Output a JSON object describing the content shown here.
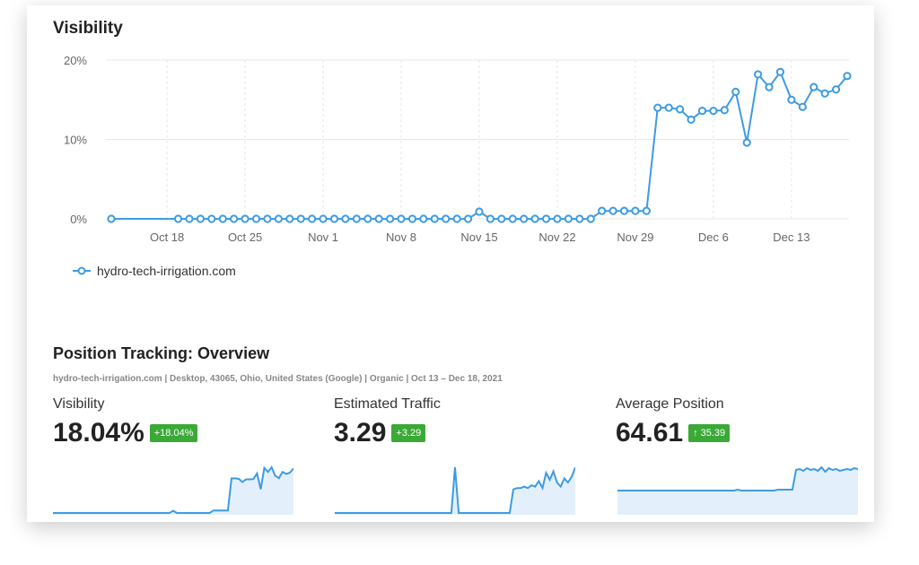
{
  "chart_data": [
    {
      "type": "line",
      "title": "Visibility",
      "ylim": [
        0,
        20
      ],
      "yticks": [
        "0%",
        "10%",
        "20%"
      ],
      "ytick_values": [
        0,
        10,
        20
      ],
      "xlim": [
        "2021-10-13",
        "2021-12-18"
      ],
      "xticks": [
        "Oct 18",
        "Oct 25",
        "Nov 1",
        "Nov 8",
        "Nov 15",
        "Nov 22",
        "Nov 29",
        "Dec 6",
        "Dec 13"
      ],
      "xtick_dates": [
        "2021-10-18",
        "2021-10-25",
        "2021-11-01",
        "2021-11-08",
        "2021-11-15",
        "2021-11-22",
        "2021-11-29",
        "2021-12-06",
        "2021-12-13"
      ],
      "grid": true,
      "legend": "bottom-left",
      "series": [
        {
          "name": "hydro-tech-irrigation.com",
          "color": "#3d9be3",
          "points": [
            [
              "2021-10-13",
              0
            ],
            [
              "2021-10-19",
              0
            ],
            [
              "2021-10-20",
              0
            ],
            [
              "2021-10-21",
              0
            ],
            [
              "2021-10-22",
              0
            ],
            [
              "2021-10-23",
              0
            ],
            [
              "2021-10-24",
              0
            ],
            [
              "2021-10-25",
              0
            ],
            [
              "2021-10-26",
              0
            ],
            [
              "2021-10-27",
              0
            ],
            [
              "2021-10-28",
              0
            ],
            [
              "2021-10-29",
              0
            ],
            [
              "2021-10-30",
              0
            ],
            [
              "2021-10-31",
              0
            ],
            [
              "2021-11-01",
              0
            ],
            [
              "2021-11-02",
              0
            ],
            [
              "2021-11-03",
              0
            ],
            [
              "2021-11-04",
              0
            ],
            [
              "2021-11-05",
              0
            ],
            [
              "2021-11-06",
              0
            ],
            [
              "2021-11-07",
              0
            ],
            [
              "2021-11-08",
              0
            ],
            [
              "2021-11-09",
              0
            ],
            [
              "2021-11-10",
              0
            ],
            [
              "2021-11-11",
              0
            ],
            [
              "2021-11-12",
              0
            ],
            [
              "2021-11-13",
              0
            ],
            [
              "2021-11-14",
              0
            ],
            [
              "2021-11-15",
              0.9
            ],
            [
              "2021-11-16",
              0
            ],
            [
              "2021-11-17",
              0
            ],
            [
              "2021-11-18",
              0
            ],
            [
              "2021-11-19",
              0
            ],
            [
              "2021-11-20",
              0
            ],
            [
              "2021-11-21",
              0
            ],
            [
              "2021-11-22",
              0
            ],
            [
              "2021-11-23",
              0
            ],
            [
              "2021-11-24",
              0
            ],
            [
              "2021-11-25",
              0
            ],
            [
              "2021-11-26",
              1
            ],
            [
              "2021-11-27",
              1
            ],
            [
              "2021-11-28",
              1
            ],
            [
              "2021-11-29",
              1
            ],
            [
              "2021-11-30",
              1
            ],
            [
              "2021-12-01",
              14
            ],
            [
              "2021-12-02",
              14
            ],
            [
              "2021-12-03",
              13.8
            ],
            [
              "2021-12-04",
              12.5
            ],
            [
              "2021-12-05",
              13.6
            ],
            [
              "2021-12-06",
              13.6
            ],
            [
              "2021-12-07",
              13.7
            ],
            [
              "2021-12-08",
              16
            ],
            [
              "2021-12-09",
              9.6
            ],
            [
              "2021-12-10",
              18.2
            ],
            [
              "2021-12-11",
              16.6
            ],
            [
              "2021-12-12",
              18.5
            ],
            [
              "2021-12-13",
              15
            ],
            [
              "2021-12-14",
              14.1
            ],
            [
              "2021-12-15",
              16.6
            ],
            [
              "2021-12-16",
              15.8
            ],
            [
              "2021-12-17",
              16.3
            ],
            [
              "2021-12-18",
              18
            ]
          ]
        }
      ]
    },
    {
      "type": "area",
      "title": "Visibility",
      "values": [
        0,
        0,
        0,
        0,
        0,
        0,
        0,
        0,
        0,
        0,
        0,
        0,
        0,
        0,
        0,
        0,
        0,
        0,
        0,
        0,
        0,
        0,
        0,
        0,
        0,
        0,
        0,
        0,
        0,
        0,
        0,
        0,
        0,
        0.9,
        0,
        0,
        0,
        0,
        0,
        0,
        0,
        0,
        0,
        0,
        1,
        1,
        1,
        1,
        1,
        14,
        14,
        13.8,
        12.5,
        13.6,
        13.6,
        13.7,
        16,
        9.6,
        18.2,
        16.6,
        18.5,
        15,
        14.1,
        16.6,
        15.8,
        16.3,
        18
      ]
    },
    {
      "type": "area",
      "title": "Estimated Traffic",
      "values": [
        0,
        0,
        0,
        0,
        0,
        0,
        0,
        0,
        0,
        0,
        0,
        0,
        0,
        0,
        0,
        0,
        0,
        0,
        0,
        0,
        0,
        0,
        0,
        0,
        0,
        0,
        0,
        0,
        0,
        0,
        0,
        0,
        0,
        3.3,
        0,
        0,
        0,
        0,
        0,
        0,
        0,
        0,
        0,
        0,
        0,
        0,
        0,
        0,
        0,
        1.7,
        1.8,
        1.8,
        1.9,
        1.8,
        2.0,
        1.9,
        2.3,
        1.8,
        2.9,
        2.4,
        3.0,
        2.2,
        1.9,
        2.5,
        2.2,
        2.6,
        3.29
      ]
    },
    {
      "type": "area",
      "title": "Average Position",
      "values": [
        25,
        25,
        25,
        25,
        25,
        25,
        25,
        25,
        25,
        25,
        25,
        25,
        25,
        25,
        25,
        25,
        25,
        25,
        25,
        25,
        25,
        25,
        25,
        25,
        25,
        25,
        25,
        25,
        25,
        25,
        25,
        25,
        25,
        26,
        25,
        25,
        25,
        25,
        25,
        25,
        25,
        25,
        25,
        25,
        26,
        26,
        26,
        26,
        26,
        48,
        49,
        47,
        50,
        48,
        49,
        47,
        51,
        46,
        50,
        48,
        49,
        47,
        48,
        49,
        48,
        50,
        49
      ]
    }
  ],
  "visibility_chart": {
    "title": "Visibility",
    "legend_label": "hydro-tech-irrigation.com",
    "color": "#3d9be3"
  },
  "overview": {
    "title": "Position Tracking: Overview",
    "subtitle": "hydro-tech-irrigation.com | Desktop, 43065, Ohio, United States (Google) | Organic | Oct 13 – Dec 18, 2021",
    "metrics": [
      {
        "label": "Visibility",
        "value": "18.04%",
        "change": "+18.04%"
      },
      {
        "label": "Estimated Traffic",
        "value": "3.29",
        "change": "+3.29"
      },
      {
        "label": "Average Position",
        "value": "64.61",
        "change": "↑ 35.39"
      }
    ],
    "badge_color": "#3aa935",
    "spark_fill": "#e3f0fb"
  }
}
